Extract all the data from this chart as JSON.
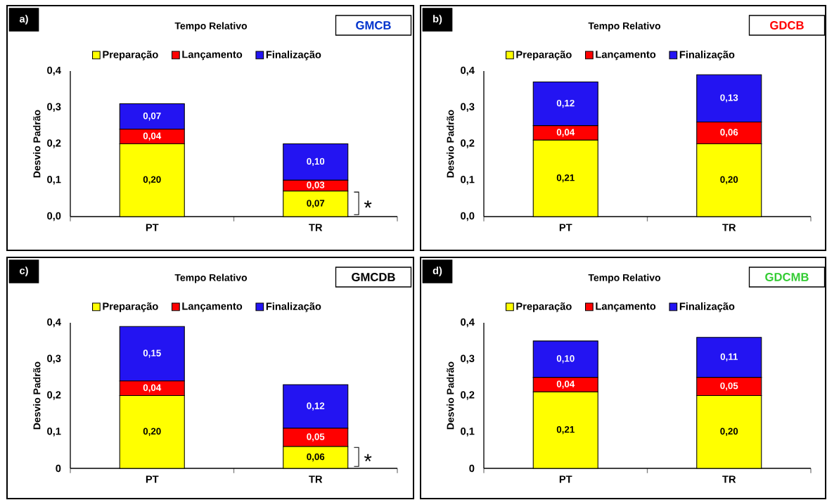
{
  "chart_data": [
    {
      "type": "bar",
      "title": "Tempo Relativo",
      "subtitle": "GMCB",
      "ylabel": "Desvio Padrão",
      "categories": [
        "PT",
        "TR"
      ],
      "stacked": true,
      "legend": "top",
      "ylim": [
        0,
        0.4
      ],
      "yticks": [
        {
          "value": 0,
          "label": "0,0"
        },
        {
          "value": 0.1,
          "label": "0,1"
        },
        {
          "value": 0.2,
          "label": "0,2"
        },
        {
          "value": 0.3,
          "label": "0,3"
        },
        {
          "value": 0.4,
          "label": "0,4"
        }
      ],
      "series": [
        {
          "name": "Preparação",
          "color": "#ffff00",
          "values": [
            0.2,
            0.07
          ],
          "value_labels": [
            "0,20",
            "0,07"
          ]
        },
        {
          "name": "Lançamento",
          "color": "#ff0000",
          "values": [
            0.04,
            0.03
          ],
          "value_labels": [
            "0,04",
            "0,03"
          ]
        },
        {
          "name": "Finalização",
          "color": "#2314f2",
          "values": [
            0.07,
            0.1
          ],
          "value_labels": [
            "0,07",
            "0,10"
          ]
        }
      ],
      "annotations": [
        "a)",
        "*"
      ]
    },
    {
      "type": "bar",
      "title": "Tempo Relativo",
      "subtitle": "GDCB",
      "ylabel": "Desvio Padrão",
      "categories": [
        "PT",
        "TR"
      ],
      "stacked": true,
      "legend": "top",
      "ylim": [
        0,
        0.4
      ],
      "yticks": [
        {
          "value": 0,
          "label": "0,0"
        },
        {
          "value": 0.1,
          "label": "0,1"
        },
        {
          "value": 0.2,
          "label": "0,2"
        },
        {
          "value": 0.3,
          "label": "0,3"
        },
        {
          "value": 0.4,
          "label": "0,4"
        }
      ],
      "series": [
        {
          "name": "Preparação",
          "color": "#ffff00",
          "values": [
            0.21,
            0.2
          ],
          "value_labels": [
            "0,21",
            "0,20"
          ]
        },
        {
          "name": "Lançamento",
          "color": "#ff0000",
          "values": [
            0.04,
            0.06
          ],
          "value_labels": [
            "0,04",
            "0,06"
          ]
        },
        {
          "name": "Finalização",
          "color": "#2314f2",
          "values": [
            0.12,
            0.13
          ],
          "value_labels": [
            "0,12",
            "0,13"
          ]
        }
      ],
      "annotations": [
        "b)"
      ]
    },
    {
      "type": "bar",
      "title": "Tempo Relativo",
      "subtitle": "GMCDB",
      "ylabel": "Desvio Padrão",
      "categories": [
        "PT",
        "TR"
      ],
      "stacked": true,
      "legend": "top",
      "ylim": [
        0,
        0.4
      ],
      "yticks": [
        0,
        {
          "value": 0.1,
          "label": "0,1"
        },
        {
          "value": 0.2,
          "label": "0,2"
        },
        {
          "value": 0.3,
          "label": "0,3"
        },
        {
          "value": 0.4,
          "label": "0,4"
        }
      ],
      "series": [
        {
          "name": "Preparação",
          "color": "#ffff00",
          "values": [
            0.2,
            0.06
          ],
          "value_labels": [
            "0,20",
            "0,06"
          ]
        },
        {
          "name": "Lançamento",
          "color": "#ff0000",
          "values": [
            0.04,
            0.05
          ],
          "value_labels": [
            "0,04",
            "0,05"
          ]
        },
        {
          "name": "Finalização",
          "color": "#2314f2",
          "values": [
            0.15,
            0.12
          ],
          "value_labels": [
            "0,15",
            "0,12"
          ]
        }
      ],
      "annotations": [
        "c)",
        "*"
      ]
    },
    {
      "type": "bar",
      "title": "Tempo Relativo",
      "subtitle": "GDCMB",
      "ylabel": "Desvio Padrão",
      "categories": [
        "PT",
        "TR"
      ],
      "stacked": true,
      "legend": "top",
      "ylim": [
        0,
        0.4
      ],
      "yticks": [
        0,
        {
          "value": 0.1,
          "label": "0,1"
        },
        {
          "value": 0.2,
          "label": "0,2"
        },
        {
          "value": 0.3,
          "label": "0,3"
        },
        {
          "value": 0.4,
          "label": "0,4"
        }
      ],
      "series": [
        {
          "name": "Preparação",
          "color": "#ffff00",
          "values": [
            0.21,
            0.2
          ],
          "value_labels": [
            "0,21",
            "0,20"
          ]
        },
        {
          "name": "Lançamento",
          "color": "#ff0000",
          "values": [
            0.04,
            0.05
          ],
          "value_labels": [
            "0,04",
            "0,05"
          ]
        },
        {
          "name": "Finalização",
          "color": "#2314f2",
          "values": [
            0.1,
            0.11
          ],
          "value_labels": [
            "0,10",
            "0,11"
          ]
        }
      ],
      "annotations": [
        "d)"
      ]
    }
  ]
}
